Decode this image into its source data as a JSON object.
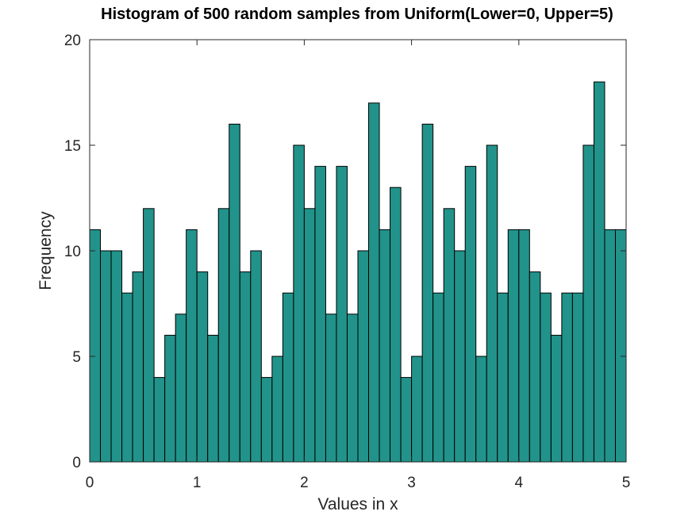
{
  "chart_data": {
    "type": "bar",
    "title": "Histogram of 500 random samples from Uniform(Lower=0, Upper=5)",
    "xlabel": "Values in x",
    "ylabel": "Frequency",
    "xlim": [
      0,
      5
    ],
    "ylim": [
      0,
      20
    ],
    "xticks": [
      "0",
      "1",
      "2",
      "3",
      "4",
      "5"
    ],
    "yticks": [
      "0",
      "5",
      "10",
      "15",
      "20"
    ],
    "bin_width": 0.1,
    "bin_edges_start": 0,
    "values": [
      11,
      10,
      10,
      8,
      9,
      12,
      4,
      6,
      7,
      11,
      9,
      6,
      12,
      16,
      9,
      10,
      4,
      5,
      8,
      15,
      12,
      14,
      7,
      14,
      7,
      10,
      17,
      11,
      13,
      4,
      5,
      16,
      8,
      12,
      10,
      14,
      5,
      15,
      8,
      11,
      11,
      9,
      8,
      6,
      8,
      8,
      15,
      18,
      11,
      11
    ],
    "bar_color": "#21938a",
    "edge_color": "#000000",
    "grid": false,
    "legend": "none"
  }
}
